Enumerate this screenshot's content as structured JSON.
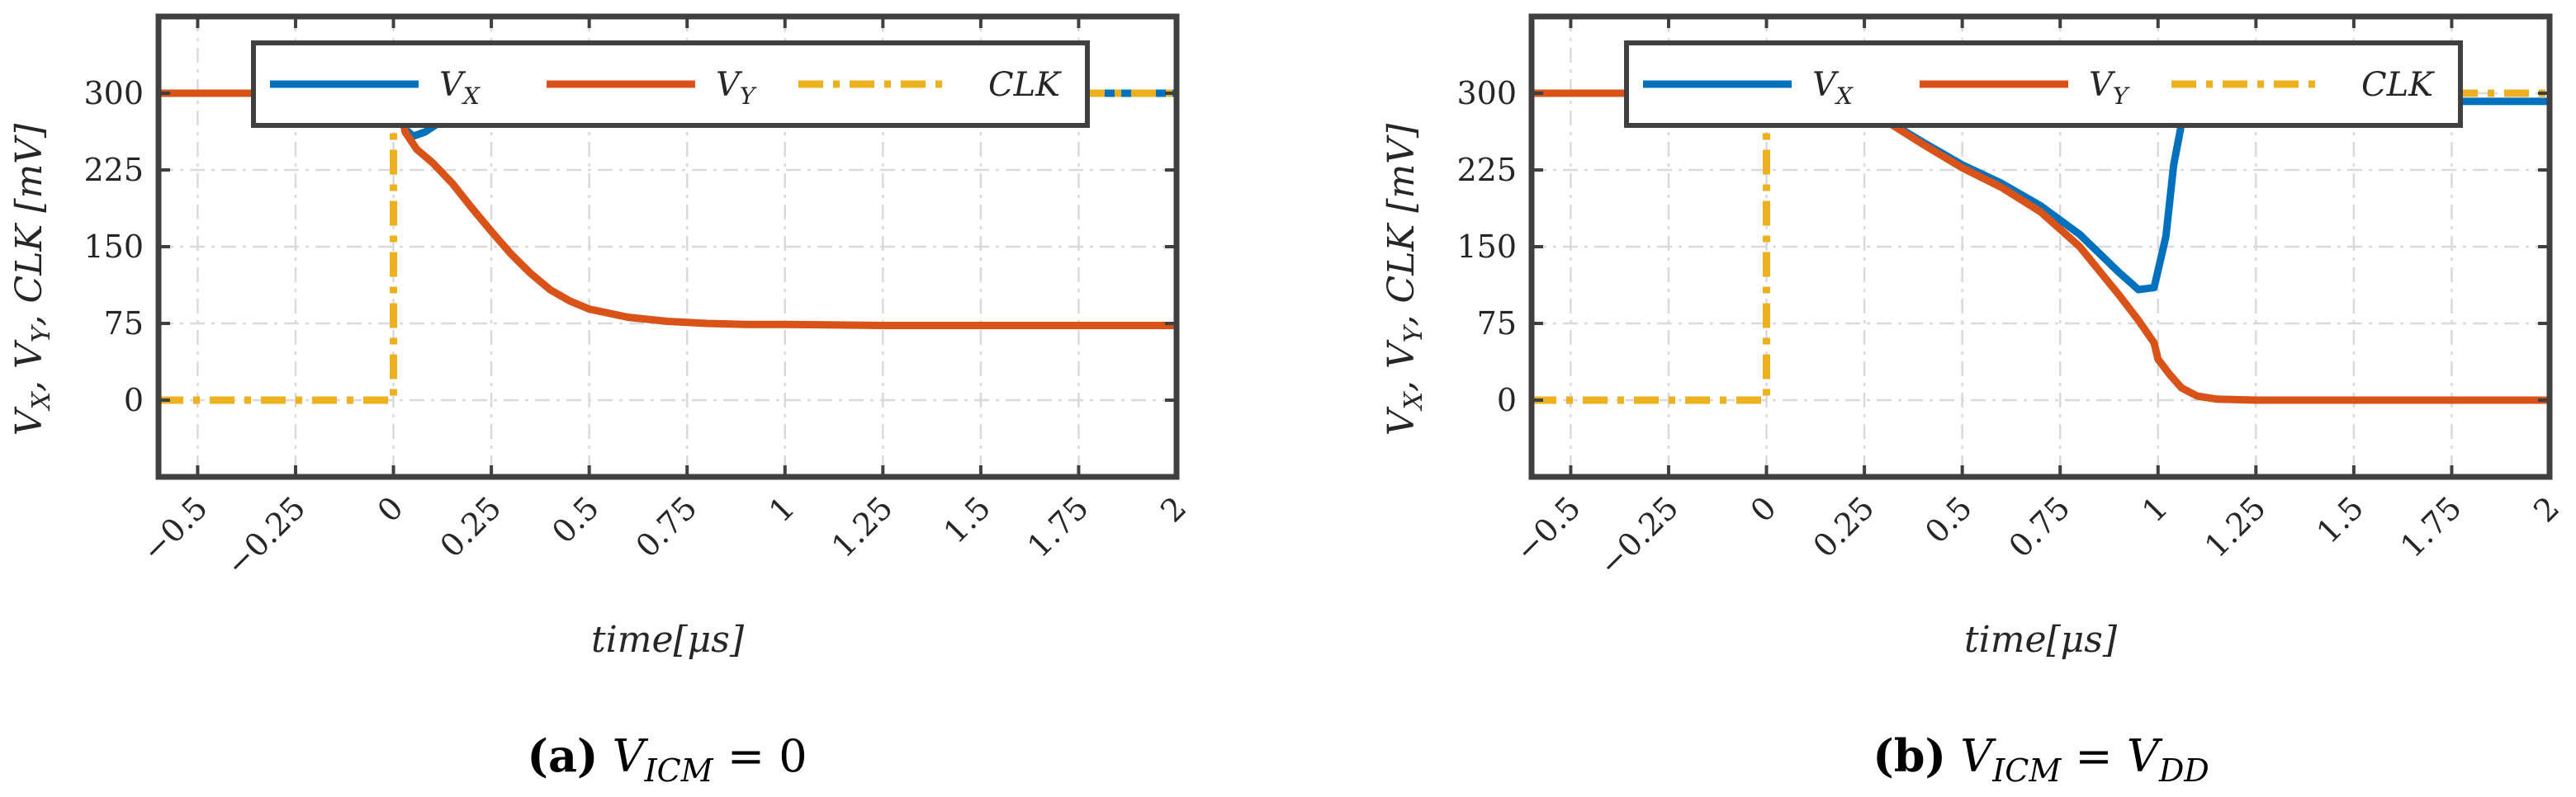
{
  "panels": [
    {
      "caption_tag": "(a)",
      "caption_text": "V_ICM = 0",
      "caption_sub": "ICM",
      "caption_rhs": "= 0",
      "chart_data": {
        "type": "line",
        "xlabel": "time[μs]",
        "ylabel": "V_X, V_Y, CLK [mV]",
        "xlim": [
          -0.6,
          2
        ],
        "ylim": [
          -75,
          375
        ],
        "xticks": [
          -0.5,
          -0.25,
          0,
          0.25,
          0.5,
          0.75,
          1,
          1.25,
          1.5,
          1.75,
          2
        ],
        "xticklabels": [
          "−0.5",
          "−0.25",
          "0",
          "0.25",
          "0.5",
          "0.75",
          "1",
          "1.25",
          "1.5",
          "1.75",
          "2"
        ],
        "yticks": [
          0,
          75,
          150,
          225,
          300
        ],
        "yticklabels": [
          "0",
          "75",
          "150",
          "225",
          "300"
        ],
        "grid": true,
        "legend_position": "top",
        "series": [
          {
            "name": "V_X",
            "color": "#0072BD",
            "style": "solid",
            "x": [
              -0.6,
              -0.01,
              0.0,
              0.01,
              0.03,
              0.05,
              0.08,
              0.12,
              0.18,
              0.25,
              0.35,
              0.5,
              0.75,
              1,
              1.5,
              2
            ],
            "y": [
              300,
              300,
              330,
              300,
              265,
              258,
              262,
              272,
              284,
              292,
              296,
              298,
              299,
              300,
              300,
              300
            ]
          },
          {
            "name": "V_Y",
            "color": "#D95319",
            "style": "solid",
            "x": [
              -0.6,
              -0.01,
              0.0,
              0.01,
              0.03,
              0.06,
              0.1,
              0.15,
              0.2,
              0.25,
              0.3,
              0.35,
              0.4,
              0.45,
              0.5,
              0.6,
              0.7,
              0.8,
              0.9,
              1.0,
              1.25,
              1.5,
              2
            ],
            "y": [
              300,
              300,
              332,
              300,
              262,
              245,
              232,
              212,
              188,
              165,
              143,
              124,
              108,
              97,
              89,
              81,
              77,
              75,
              74,
              74,
              73,
              73,
              73
            ]
          },
          {
            "name": "CLK",
            "color": "#EDB120",
            "style": "dashdot",
            "x": [
              -0.6,
              0.0,
              0.0,
              2
            ],
            "y": [
              0,
              0,
              300,
              300
            ]
          }
        ]
      }
    },
    {
      "caption_tag": "(b)",
      "caption_text": "V_ICM = V_DD",
      "caption_sub": "ICM",
      "caption_rhs": "= V",
      "caption_rhs_sub": "DD",
      "chart_data": {
        "type": "line",
        "xlabel": "time[μs]",
        "ylabel": "V_X, V_Y, CLK [mV]",
        "xlim": [
          -0.6,
          2
        ],
        "ylim": [
          -75,
          375
        ],
        "xticks": [
          -0.5,
          -0.25,
          0,
          0.25,
          0.5,
          0.75,
          1,
          1.25,
          1.5,
          1.75,
          2
        ],
        "xticklabels": [
          "−0.5",
          "−0.25",
          "0",
          "0.25",
          "0.5",
          "0.75",
          "1",
          "1.25",
          "1.5",
          "1.75",
          "2"
        ],
        "yticks": [
          0,
          75,
          150,
          225,
          300
        ],
        "yticklabels": [
          "0",
          "75",
          "150",
          "225",
          "300"
        ],
        "grid": true,
        "legend_position": "top",
        "series": [
          {
            "name": "V_X",
            "color": "#0072BD",
            "style": "solid",
            "x": [
              -0.6,
              -0.01,
              0.0,
              0.05,
              0.1,
              0.15,
              0.2,
              0.3,
              0.4,
              0.5,
              0.6,
              0.7,
              0.8,
              0.9,
              0.95,
              0.99,
              1.02,
              1.04,
              1.06,
              1.08,
              1.1,
              1.2,
              1.5,
              2
            ],
            "y": [
              300,
              300,
              333,
              332,
              325,
              305,
              290,
              275,
              252,
              230,
              212,
              190,
              162,
              125,
              108,
              110,
              160,
              230,
              270,
              286,
              291,
              292,
              292,
              292
            ]
          },
          {
            "name": "V_Y",
            "color": "#D95319",
            "style": "solid",
            "x": [
              -0.6,
              -0.01,
              0.0,
              0.05,
              0.1,
              0.15,
              0.2,
              0.3,
              0.4,
              0.5,
              0.6,
              0.7,
              0.8,
              0.9,
              0.95,
              0.99,
              1.0,
              1.03,
              1.06,
              1.1,
              1.15,
              1.25,
              1.5,
              2
            ],
            "y": [
              300,
              300,
              333,
              332,
              325,
              305,
              290,
              274,
              250,
              227,
              208,
              184,
              150,
              103,
              78,
              56,
              40,
              25,
              12,
              4,
              1,
              0,
              0,
              0
            ]
          },
          {
            "name": "CLK",
            "color": "#EDB120",
            "style": "dashdot",
            "x": [
              -0.6,
              0.0,
              0.0,
              2
            ],
            "y": [
              0,
              0,
              300,
              300
            ]
          }
        ]
      }
    }
  ],
  "legend": {
    "v_x_main": "V",
    "v_x_sub": "X",
    "v_y_main": "V",
    "v_y_sub": "Y",
    "clk": "CLK"
  },
  "axis_labels": {
    "xlabel_main": "time[μs]",
    "ylabel_main": "V",
    "ylabel_x_sub": "X",
    "ylabel_sep1": ", V",
    "ylabel_y_sub": "Y",
    "ylabel_rest": ", CLK [mV]"
  }
}
